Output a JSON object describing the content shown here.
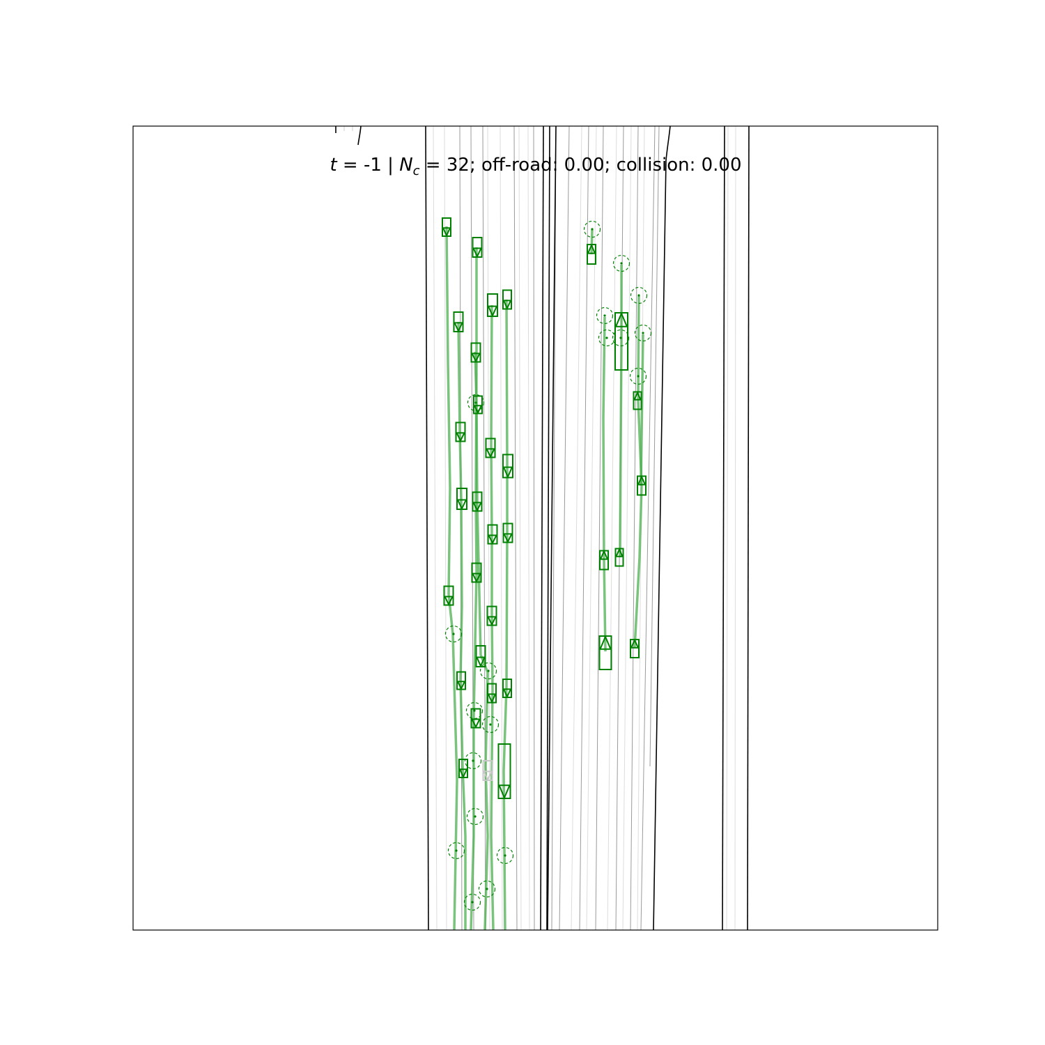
{
  "title": {
    "t_symbol": "t",
    "t_value": " = -1  | ",
    "n_symbol": "N",
    "n_sub": "c",
    "rest": " = 32; off-road: 0.00; collision: 0.00"
  },
  "stats": {
    "timestep": -1,
    "num_controlled": 32,
    "off_road": 0.0,
    "collision": 0.0
  },
  "colors": {
    "vehicle": "#008000",
    "trajectory": "#4caf50",
    "road_edge": "#000000",
    "lane_line": "#9a9a9a",
    "lane_line_light": "#d8d8d8",
    "inactive_vehicle": "#c8c8c8"
  },
  "icons": [
    "vehicle-box-icon",
    "heading-triangle-icon",
    "goal-circle-icon"
  ]
}
